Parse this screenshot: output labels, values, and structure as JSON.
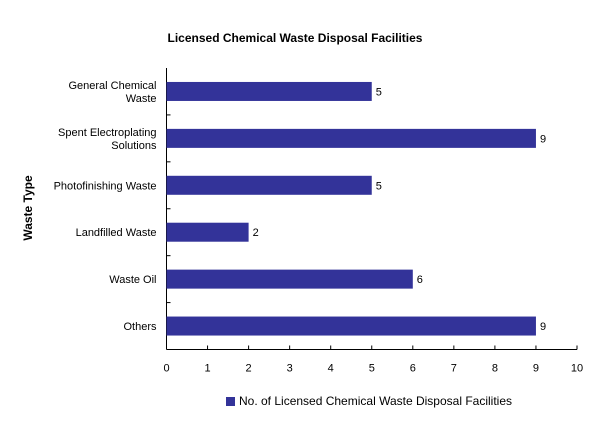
{
  "chart_data": {
    "type": "bar",
    "orientation": "horizontal",
    "title": "Licensed Chemical Waste Disposal Facilities",
    "xlabel": "",
    "ylabel": "Waste Type",
    "categories": [
      [
        "General Chemical",
        "Waste"
      ],
      [
        "Spent Electroplating",
        "Solutions"
      ],
      [
        "Photofinishing Waste"
      ],
      [
        "Landfilled Waste"
      ],
      [
        "Waste Oil"
      ],
      [
        "Others"
      ]
    ],
    "series": [
      {
        "name": "No. of Licensed Chemical Waste Disposal Facilities",
        "values": [
          5,
          9,
          5,
          2,
          6,
          9
        ],
        "color": "#333399"
      }
    ],
    "xlim": [
      0,
      10
    ],
    "xticks": [
      "0",
      "1",
      "2",
      "3",
      "4",
      "5",
      "6",
      "7",
      "8",
      "9",
      "10"
    ],
    "grid": false,
    "data_labels": true,
    "legend": "bottom"
  }
}
